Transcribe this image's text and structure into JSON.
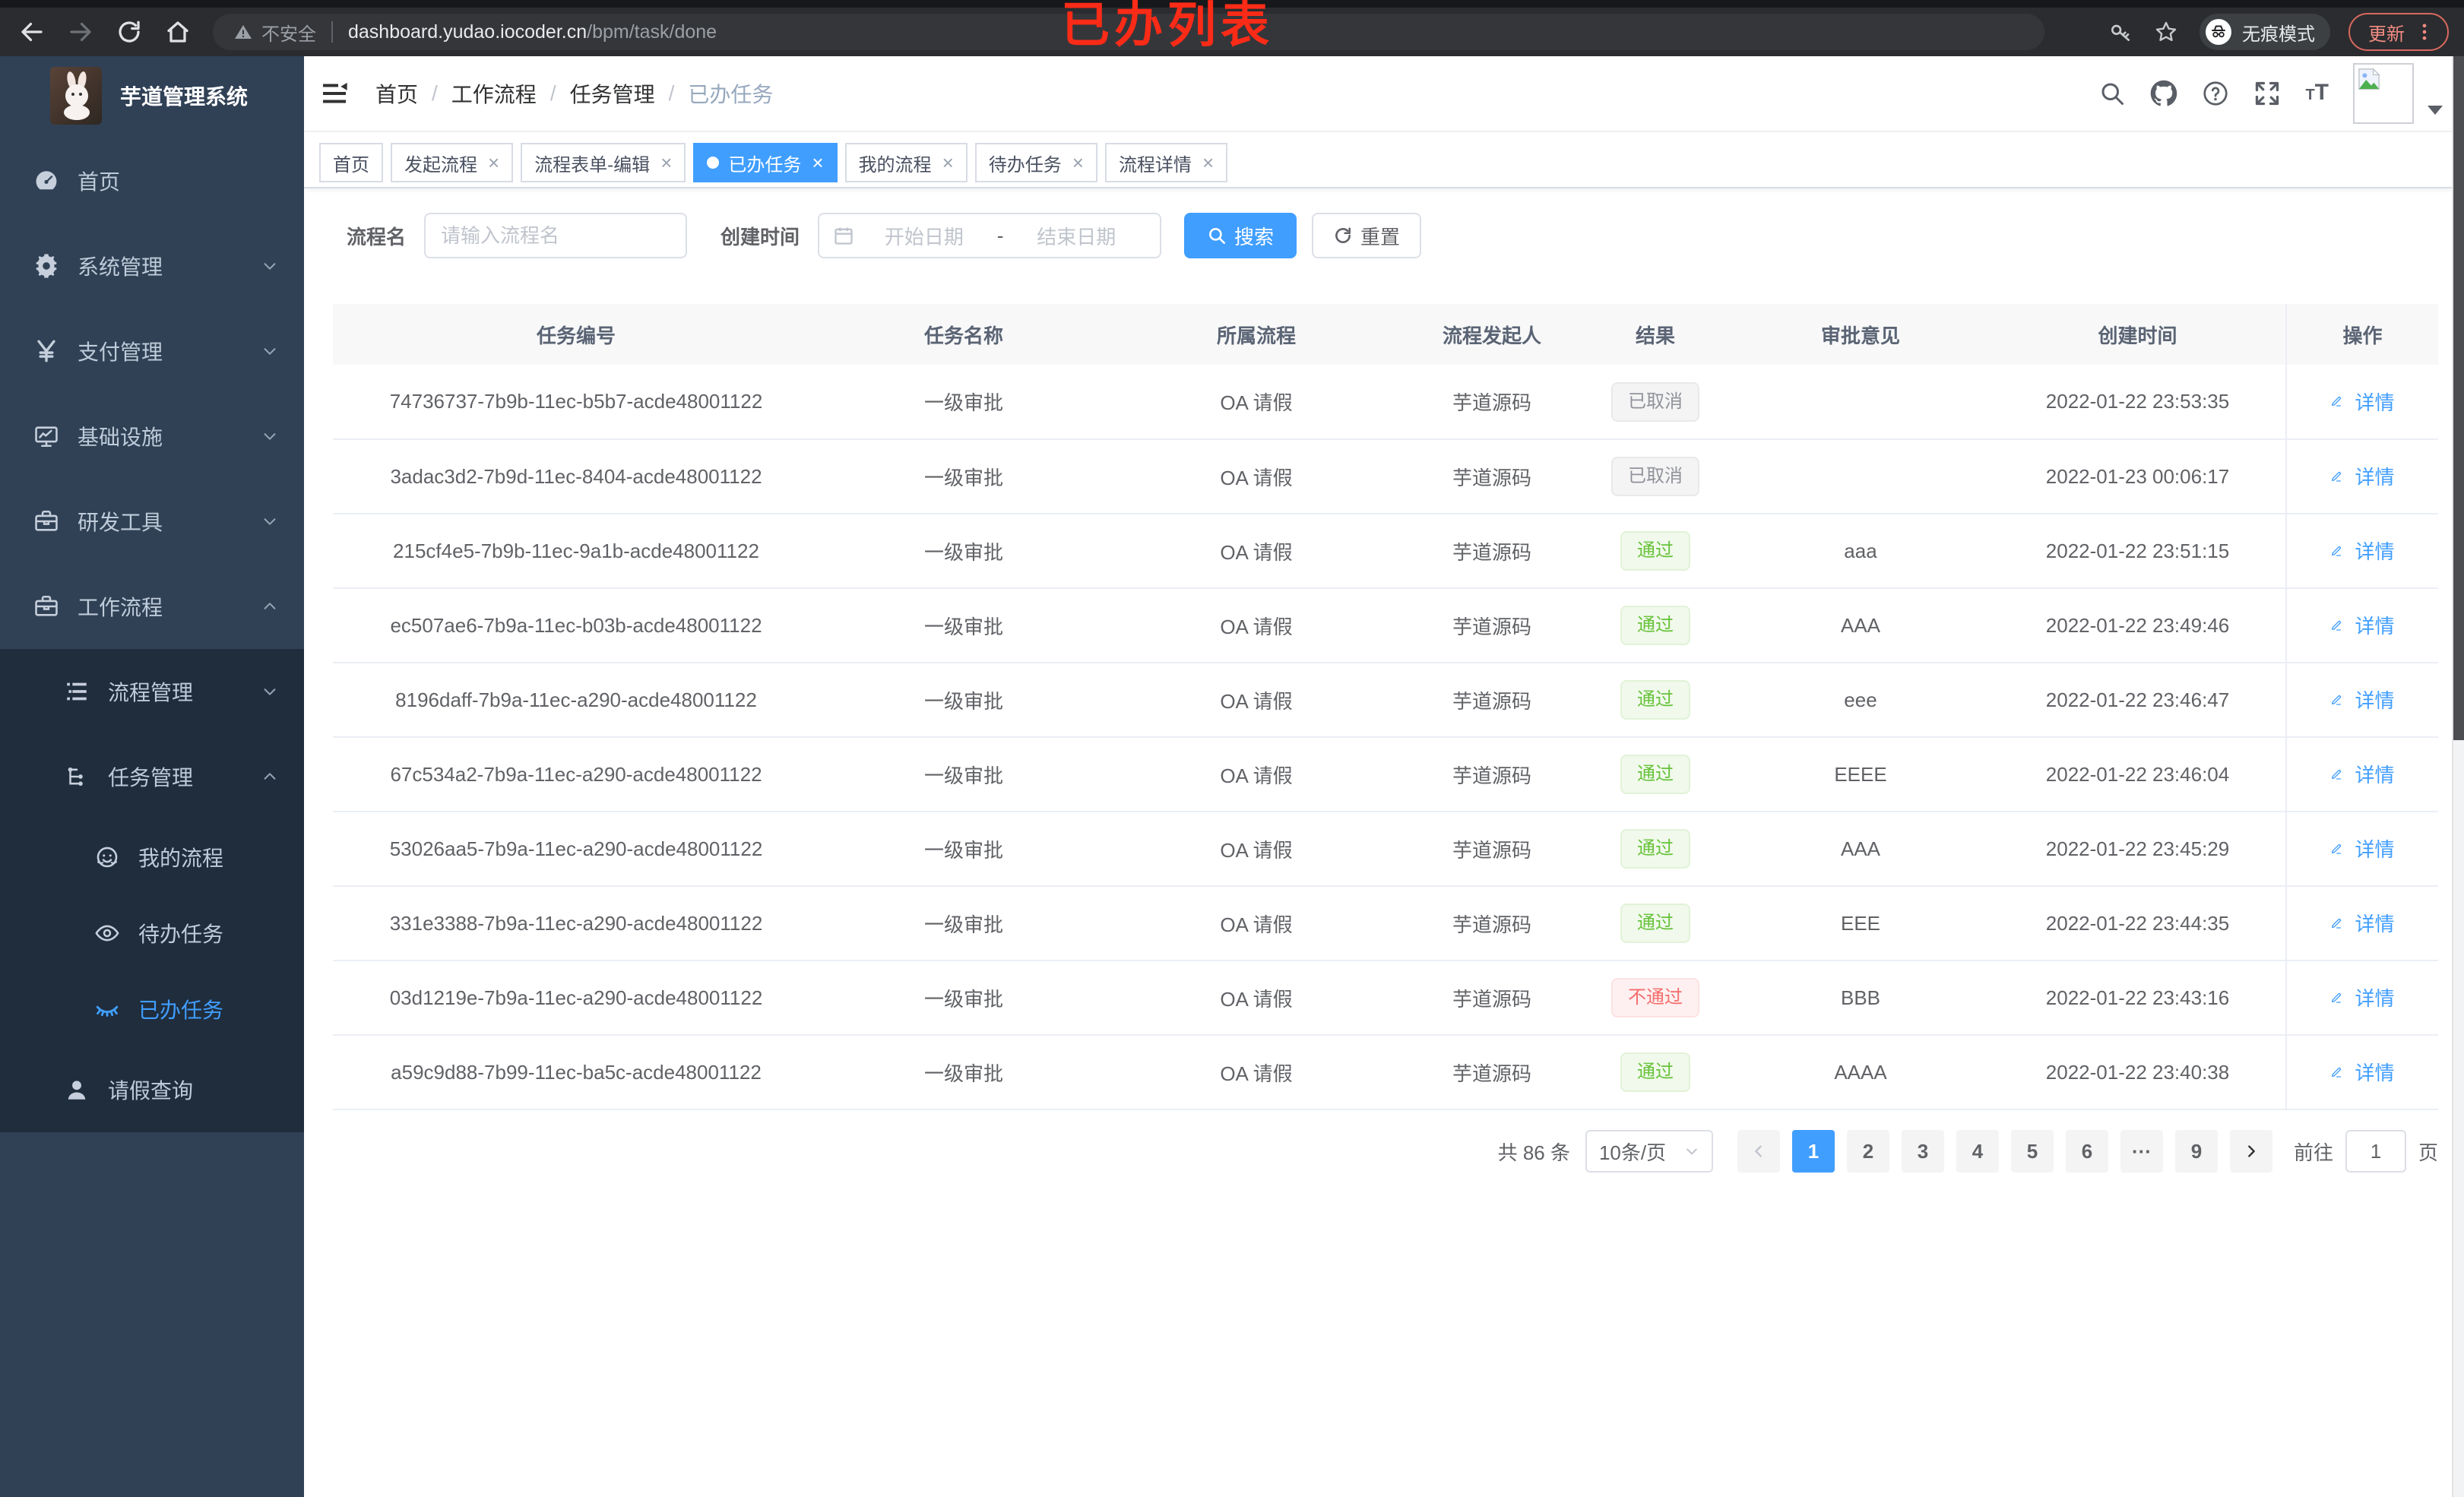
{
  "browser": {
    "security_label": "不安全",
    "url_host": "dashboard.yudao.iocoder.cn",
    "url_path": "/bpm/task/done",
    "incognito_label": "无痕模式",
    "update_label": "更新",
    "annotation": "已办列表"
  },
  "sidebar": {
    "title": "芋道管理系统",
    "menu": [
      {
        "name": "home",
        "label": "首页",
        "icon": "dashboard-icon",
        "level": 1
      },
      {
        "name": "system-management",
        "label": "系统管理",
        "icon": "gear-icon",
        "level": 1,
        "chevron": "down"
      },
      {
        "name": "payment-management",
        "label": "支付管理",
        "icon": "yen-icon",
        "level": 1,
        "chevron": "down"
      },
      {
        "name": "infrastructure",
        "label": "基础设施",
        "icon": "monitor-icon",
        "level": 1,
        "chevron": "down"
      },
      {
        "name": "dev-tools",
        "label": "研发工具",
        "icon": "toolbox-icon",
        "level": 1,
        "chevron": "down"
      },
      {
        "name": "workflow",
        "label": "工作流程",
        "icon": "briefcase-icon",
        "level": 1,
        "chevron": "up"
      },
      {
        "name": "process-management",
        "label": "流程管理",
        "icon": "list-tree-icon",
        "level": 2,
        "chevron": "down"
      },
      {
        "name": "task-management",
        "label": "任务管理",
        "icon": "org-tree-icon",
        "level": 2,
        "chevron": "up"
      },
      {
        "name": "my-process",
        "label": "我的流程",
        "icon": "face-icon",
        "level": 3
      },
      {
        "name": "todo-tasks",
        "label": "待办任务",
        "icon": "eye-open-icon",
        "level": 3
      },
      {
        "name": "done-tasks",
        "label": "已办任务",
        "icon": "eye-closed-icon",
        "level": 3,
        "active": true
      },
      {
        "name": "leave-query",
        "label": "请假查询",
        "icon": "user-icon",
        "level": 2
      }
    ]
  },
  "navbar": {
    "breadcrumb": [
      {
        "label": "首页"
      },
      {
        "label": "工作流程"
      },
      {
        "label": "任务管理"
      },
      {
        "label": "已办任务",
        "current": true
      }
    ]
  },
  "tabs": [
    {
      "name": "tab-home",
      "label": "首页",
      "closable": false,
      "active": false
    },
    {
      "name": "tab-start-process",
      "label": "发起流程",
      "closable": true,
      "active": false
    },
    {
      "name": "tab-form-edit",
      "label": "流程表单-编辑",
      "closable": true,
      "active": false
    },
    {
      "name": "tab-done-tasks",
      "label": "已办任务",
      "closable": true,
      "active": true
    },
    {
      "name": "tab-my-process",
      "label": "我的流程",
      "closable": true,
      "active": false
    },
    {
      "name": "tab-todo-tasks",
      "label": "待办任务",
      "closable": true,
      "active": false
    },
    {
      "name": "tab-process-detail",
      "label": "流程详情",
      "closable": true,
      "active": false
    }
  ],
  "filters": {
    "name_label": "流程名",
    "name_placeholder": "请输入流程名",
    "time_label": "创建时间",
    "start_placeholder": "开始日期",
    "range_separator": "-",
    "end_placeholder": "结束日期",
    "search_label": "搜索",
    "reset_label": "重置"
  },
  "table": {
    "columns": [
      "任务编号",
      "任务名称",
      "所属流程",
      "流程发起人",
      "结果",
      "审批意见",
      "创建时间",
      "操作"
    ],
    "detail_label": "详情",
    "rows": [
      {
        "id": "74736737-7b9b-11ec-b5b7-acde48001122",
        "name": "一级审批",
        "process": "OA 请假",
        "starter": "芋道源码",
        "result": "已取消",
        "result_type": "info",
        "opinion": "",
        "time": "2022-01-22 23:53:35"
      },
      {
        "id": "3adac3d2-7b9d-11ec-8404-acde48001122",
        "name": "一级审批",
        "process": "OA 请假",
        "starter": "芋道源码",
        "result": "已取消",
        "result_type": "info",
        "opinion": "",
        "time": "2022-01-23 00:06:17"
      },
      {
        "id": "215cf4e5-7b9b-11ec-9a1b-acde48001122",
        "name": "一级审批",
        "process": "OA 请假",
        "starter": "芋道源码",
        "result": "通过",
        "result_type": "success",
        "opinion": "aaa",
        "time": "2022-01-22 23:51:15"
      },
      {
        "id": "ec507ae6-7b9a-11ec-b03b-acde48001122",
        "name": "一级审批",
        "process": "OA 请假",
        "starter": "芋道源码",
        "result": "通过",
        "result_type": "success",
        "opinion": "AAA",
        "time": "2022-01-22 23:49:46"
      },
      {
        "id": "8196daff-7b9a-11ec-a290-acde48001122",
        "name": "一级审批",
        "process": "OA 请假",
        "starter": "芋道源码",
        "result": "通过",
        "result_type": "success",
        "opinion": "eee",
        "time": "2022-01-22 23:46:47"
      },
      {
        "id": "67c534a2-7b9a-11ec-a290-acde48001122",
        "name": "一级审批",
        "process": "OA 请假",
        "starter": "芋道源码",
        "result": "通过",
        "result_type": "success",
        "opinion": "EEEE",
        "time": "2022-01-22 23:46:04"
      },
      {
        "id": "53026aa5-7b9a-11ec-a290-acde48001122",
        "name": "一级审批",
        "process": "OA 请假",
        "starter": "芋道源码",
        "result": "通过",
        "result_type": "success",
        "opinion": "AAA",
        "time": "2022-01-22 23:45:29"
      },
      {
        "id": "331e3388-7b9a-11ec-a290-acde48001122",
        "name": "一级审批",
        "process": "OA 请假",
        "starter": "芋道源码",
        "result": "通过",
        "result_type": "success",
        "opinion": "EEE",
        "time": "2022-01-22 23:44:35"
      },
      {
        "id": "03d1219e-7b9a-11ec-a290-acde48001122",
        "name": "一级审批",
        "process": "OA 请假",
        "starter": "芋道源码",
        "result": "不通过",
        "result_type": "danger",
        "opinion": "BBB",
        "time": "2022-01-22 23:43:16"
      },
      {
        "id": "a59c9d88-7b99-11ec-ba5c-acde48001122",
        "name": "一级审批",
        "process": "OA 请假",
        "starter": "芋道源码",
        "result": "通过",
        "result_type": "success",
        "opinion": "AAAA",
        "time": "2022-01-22 23:40:38"
      }
    ]
  },
  "pagination": {
    "total_label": "共 86 条",
    "page_size": "10条/页",
    "pages": [
      "1",
      "2",
      "3",
      "4",
      "5",
      "6",
      "···",
      "9"
    ],
    "active_page": "1",
    "goto_label": "前往",
    "goto_value": "1",
    "page_unit": "页"
  },
  "colors": {
    "accent": "#409eff",
    "success": "#67c23a",
    "danger": "#f56c6c",
    "info": "#909399",
    "sidebar": "#304156",
    "submenu": "#1f2d3d"
  }
}
